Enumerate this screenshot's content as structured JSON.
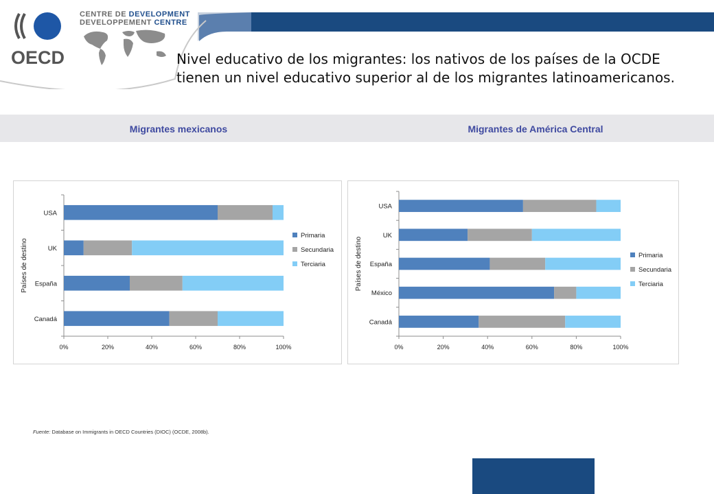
{
  "header": {
    "logo_text": "OECD",
    "centre_line1_a": "CENTRE DE",
    "centre_line1_b": "DEVELOPMENT",
    "centre_line2_a": "DEVELOPPEMENT",
    "centre_line2_b": "CENTRE"
  },
  "title": "Nivel  educativo de los migrantes: los nativos de los países de la OCDE tienen un nivel educativo superior al de los migrantes latinoamericanos.",
  "panels": {
    "left_label": "Migrantes mexicanos",
    "right_label": "Migrantes de América Central"
  },
  "source": {
    "prefix": "Fuente:",
    "text": " Database on Immigrants in OECD Countries (DIOC) (OCDE, 2008b)."
  },
  "colors": {
    "primaria": "#4f81bd",
    "secundaria": "#a5a5a5",
    "terciaria": "#83cdf6",
    "title_blue": "#3f4aa0",
    "footer": "#1a4a80"
  },
  "chart_data": [
    {
      "type": "bar",
      "orientation": "horizontal",
      "stacked": "percent",
      "ylabel": "Países de destino",
      "categories": [
        "USA",
        "UK",
        "España",
        "Canadá"
      ],
      "xticks": [
        "0%",
        "20%",
        "40%",
        "60%",
        "80%",
        "100%"
      ],
      "xlim": [
        0,
        100
      ],
      "legend_position": "right",
      "series": [
        {
          "name": "Primaria",
          "values": [
            70,
            9,
            30,
            48
          ]
        },
        {
          "name": "Secundaria",
          "values": [
            25,
            22,
            24,
            22
          ]
        },
        {
          "name": "Terciaria",
          "values": [
            5,
            69,
            46,
            30
          ]
        }
      ]
    },
    {
      "type": "bar",
      "orientation": "horizontal",
      "stacked": "percent",
      "ylabel": "Países de destino",
      "categories": [
        "USA",
        "UK",
        "España",
        "México",
        "Canadá"
      ],
      "xticks": [
        "0%",
        "20%",
        "40%",
        "60%",
        "80%",
        "100%"
      ],
      "xlim": [
        0,
        100
      ],
      "legend_position": "right",
      "series": [
        {
          "name": "Primaria",
          "values": [
            56,
            31,
            41,
            70,
            36
          ]
        },
        {
          "name": "Secundaria",
          "values": [
            33,
            29,
            25,
            10,
            39
          ]
        },
        {
          "name": "Terciaria",
          "values": [
            11,
            40,
            34,
            20,
            25
          ]
        }
      ]
    }
  ]
}
